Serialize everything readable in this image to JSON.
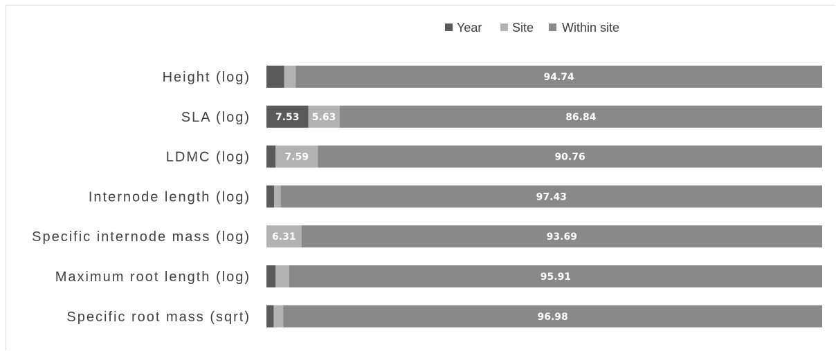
{
  "chart_data": {
    "type": "bar",
    "orientation": "horizontal",
    "stacked": "percent",
    "title": "",
    "xlabel": "",
    "ylabel": "",
    "xlim": [
      0,
      100
    ],
    "grid": false,
    "legend_position": "top",
    "categories": [
      "Height (log)",
      "SLA (log)",
      "LDMC (log)",
      "Internode length (log)",
      "Specific internode mass (log)",
      "Maximum root length (log)",
      "Specific root mass (sqrt)"
    ],
    "series": [
      {
        "name": "Year",
        "color": "#595959",
        "values": [
          3.2,
          7.53,
          1.65,
          1.4,
          0.0,
          1.66,
          1.3
        ],
        "labels": [
          "",
          "7.53",
          "",
          "",
          "",
          "",
          ""
        ]
      },
      {
        "name": "Site",
        "color": "#b2b2b2",
        "values": [
          2.06,
          5.63,
          7.59,
          1.17,
          6.31,
          2.43,
          1.72
        ],
        "labels": [
          "",
          "5.63",
          "7.59",
          "",
          "6.31",
          "",
          ""
        ]
      },
      {
        "name": "Within site",
        "color": "#898989",
        "values": [
          94.74,
          86.84,
          90.76,
          97.43,
          93.69,
          95.91,
          96.98
        ],
        "labels": [
          "94.74",
          "86.84",
          "90.76",
          "97.43",
          "93.69",
          "95.91",
          "96.98"
        ]
      }
    ]
  }
}
